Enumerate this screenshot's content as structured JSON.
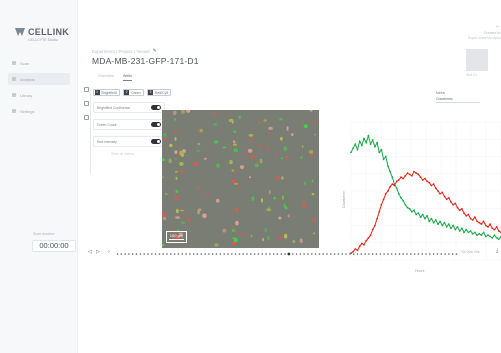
{
  "brand": {
    "name": "CELLINK",
    "tagline": "CELLCYTE Studio",
    "logo_color": "#7c8792"
  },
  "sidebar": {
    "items": [
      {
        "label": "Scan",
        "icon": "scan-icon"
      },
      {
        "label": "Analysis",
        "icon": "chart-icon"
      },
      {
        "label": "Library",
        "icon": "folder-icon"
      },
      {
        "label": "Settings",
        "icon": "gear-icon"
      }
    ],
    "active_index": 1,
    "timer": {
      "label": "Scan duration",
      "value": "00:00:00"
    }
  },
  "header": {
    "breadcrumb": "Experiment / Project / Vessel",
    "edit_icon": "pencil-icon",
    "title": "MDA-MB-231-GFP-171-D1"
  },
  "tabs": [
    {
      "label": "Overview"
    },
    {
      "label": "Wells"
    }
  ],
  "active_tab": 1,
  "top_right": {
    "line1": "Created by",
    "line2": "Export Vessel Analytics",
    "thumb_caption": "Well D1",
    "icons": [
      "minimize-icon",
      "close-icon"
    ]
  },
  "channel_panel": {
    "buttons": [
      {
        "num": "1",
        "label": "Brightfield"
      },
      {
        "num": "2",
        "label": "Green"
      },
      {
        "num": "3",
        "label": "Red/Cy5"
      }
    ],
    "rows": [
      {
        "label": "Brightfield Confluence"
      },
      {
        "label": "Green Count"
      },
      {
        "label": "Red Intensity"
      }
    ],
    "footer": "Show all metrics"
  },
  "image": {
    "scalebar_label": "100 µm"
  },
  "chart_selector": {
    "label": "Metric",
    "value": "Count/mm²"
  },
  "chart_data": {
    "type": "line",
    "x": [
      0,
      1,
      2,
      3,
      4,
      5,
      6,
      7,
      8,
      9,
      10,
      11,
      12,
      13,
      14,
      15,
      16,
      17,
      18,
      19,
      20,
      21,
      22,
      23,
      24,
      25,
      26,
      27,
      28,
      29,
      30,
      31,
      32,
      33,
      34,
      35,
      36,
      37,
      38,
      39,
      40,
      41,
      42,
      43,
      44,
      45,
      46,
      47,
      48,
      49,
      50,
      51,
      52,
      53,
      54,
      55,
      56,
      57,
      58,
      59,
      60,
      61,
      62,
      63,
      64,
      65,
      66,
      67,
      68,
      69
    ],
    "series": [
      {
        "color": "#1aa84a",
        "values": [
          78,
          81,
          84,
          80,
          86,
          83,
          88,
          85,
          90,
          84,
          87,
          82,
          85,
          78,
          80,
          73,
          75,
          68,
          64,
          60,
          55,
          52,
          48,
          45,
          43,
          40,
          38,
          37,
          35,
          36,
          33,
          34,
          31,
          33,
          30,
          32,
          28,
          30,
          27,
          29,
          26,
          28,
          25,
          27,
          24,
          26,
          23,
          25,
          22,
          24,
          21,
          23,
          20,
          22,
          20,
          21,
          19,
          20,
          18,
          19,
          18,
          20,
          17,
          18,
          17,
          16,
          18,
          16,
          15,
          17
        ]
      },
      {
        "color": "#e62418",
        "values": [
          5,
          6,
          8,
          7,
          10,
          12,
          11,
          14,
          16,
          18,
          22,
          25,
          30,
          35,
          40,
          44,
          48,
          50,
          53,
          55,
          54,
          57,
          58,
          60,
          59,
          61,
          63,
          62,
          61,
          64,
          63,
          62,
          60,
          58,
          59,
          57,
          56,
          54,
          55,
          52,
          50,
          48,
          49,
          46,
          44,
          45,
          42,
          40,
          41,
          38,
          36,
          37,
          34,
          32,
          33,
          30,
          29,
          31,
          28,
          27,
          26,
          28,
          25,
          24,
          26,
          23,
          22,
          24,
          21,
          20
        ]
      }
    ],
    "ylim": [
      0,
      100
    ],
    "xlim": [
      0,
      69
    ],
    "xlabel": "Hours",
    "ylabel": "Count/mm²",
    "grid": true
  },
  "timeline": {
    "frames": 90,
    "current_frame": 45,
    "end_label": "70h 00m 00s"
  }
}
